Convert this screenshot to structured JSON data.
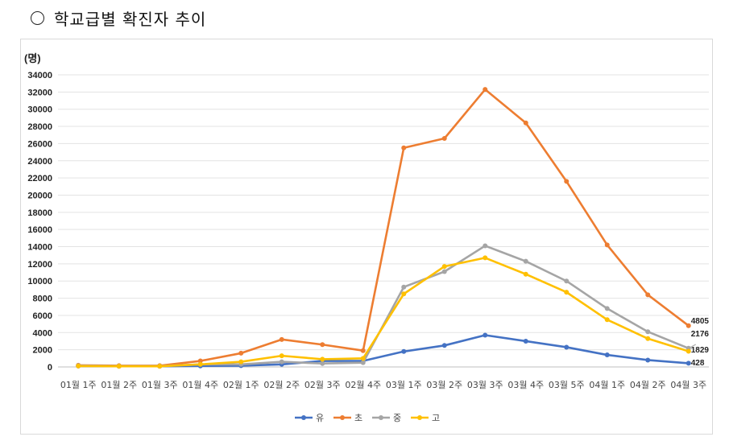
{
  "heading": {
    "title": "학교급별 확진자 추이"
  },
  "chart_data": {
    "type": "line",
    "ylabel": "(명)",
    "ylim": [
      0,
      34000
    ],
    "yticks": [
      0,
      2000,
      4000,
      6000,
      8000,
      10000,
      12000,
      14000,
      16000,
      18000,
      20000,
      22000,
      24000,
      26000,
      28000,
      30000,
      32000,
      34000
    ],
    "grid": true,
    "legend_position": "bottom",
    "categories": [
      "01월 1주",
      "01월 2주",
      "01월 3주",
      "01월 4주",
      "02월 1주",
      "02월 2주",
      "02월 3주",
      "02월 4주",
      "03월 1주",
      "03월 2주",
      "03월 3주",
      "03월 4주",
      "03월 5주",
      "04월 1주",
      "04월 2주",
      "04월 3주"
    ],
    "series": [
      {
        "name": "유",
        "color": "#4472c4",
        "values": [
          100,
          80,
          80,
          120,
          150,
          300,
          700,
          700,
          1800,
          2500,
          3700,
          3000,
          2300,
          1400,
          800,
          428
        ]
      },
      {
        "name": "초",
        "color": "#ed7d31",
        "values": [
          200,
          150,
          150,
          700,
          1600,
          3200,
          2600,
          1900,
          25500,
          26600,
          32300,
          28400,
          21600,
          14200,
          8400,
          4805
        ]
      },
      {
        "name": "중",
        "color": "#a5a5a5",
        "values": [
          150,
          100,
          100,
          300,
          300,
          600,
          400,
          500,
          9300,
          11100,
          14100,
          12300,
          10000,
          6800,
          4100,
          2176
        ]
      },
      {
        "name": "고",
        "color": "#ffc000",
        "values": [
          100,
          80,
          80,
          300,
          600,
          1300,
          900,
          1000,
          8500,
          11700,
          12700,
          10800,
          8700,
          5500,
          3300,
          1829
        ]
      }
    ],
    "end_labels": [
      "4805",
      "2176",
      "1829",
      "428"
    ]
  }
}
